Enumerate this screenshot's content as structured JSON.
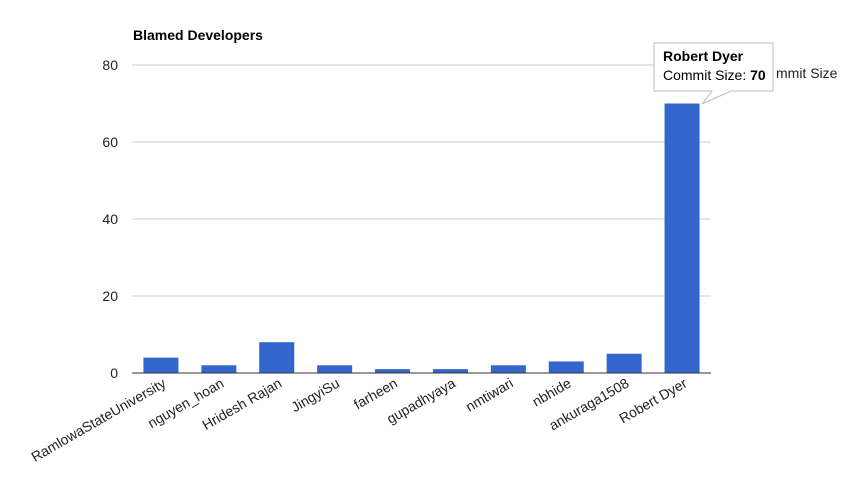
{
  "chart_data": {
    "type": "bar",
    "title": "Blamed Developers",
    "xlabel": "",
    "ylabel": "",
    "ylim": [
      0,
      80
    ],
    "yticks": [
      0,
      20,
      40,
      60,
      80
    ],
    "grid": true,
    "legend_position": "top-right",
    "categories": [
      "RamlowaStateUniversity",
      "nguyen_hoan",
      "Hridesh Rajan",
      "JingyiSu",
      "farheen",
      "gupadhyaya",
      "nmtiwari",
      "nbhide",
      "ankuraga1508",
      "Robert Dyer"
    ],
    "series": [
      {
        "name": "Commit Size",
        "values": [
          4,
          2,
          8,
          2,
          1,
          1,
          2,
          3,
          5,
          70
        ],
        "color": "#3366cc"
      }
    ],
    "tooltip": {
      "category": "Robert Dyer",
      "label": "Commit Size: ",
      "value": "70"
    },
    "legend_visible_text": "mmit Size"
  },
  "colors": {
    "bar": "#3366cc",
    "grid": "#cccccc",
    "axis": "#333333"
  }
}
